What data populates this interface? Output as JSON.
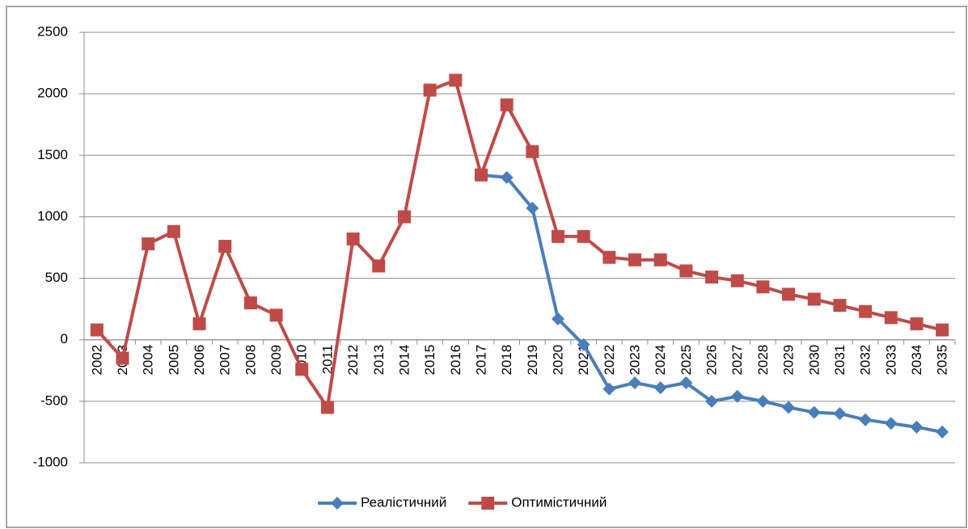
{
  "chart_data": {
    "type": "line",
    "categories": [
      "2002",
      "2003",
      "2004",
      "2005",
      "2006",
      "2007",
      "2008",
      "2009",
      "2010",
      "2011",
      "2012",
      "2013",
      "2014",
      "2015",
      "2016",
      "2017",
      "2018",
      "2019",
      "2020",
      "2021",
      "2022",
      "2023",
      "2024",
      "2025",
      "2026",
      "2027",
      "2028",
      "2029",
      "2030",
      "2031",
      "2032",
      "2033",
      "2034",
      "2035"
    ],
    "series": [
      {
        "name": "Реалістичний",
        "color": "#4a7ebb",
        "marker": "diamond",
        "values": [
          null,
          null,
          null,
          null,
          null,
          null,
          null,
          null,
          null,
          null,
          null,
          null,
          null,
          null,
          null,
          1340,
          1320,
          1070,
          170,
          -40,
          -400,
          -350,
          -390,
          -350,
          -500,
          -460,
          -500,
          -550,
          -590,
          -600,
          -650,
          -680,
          -710,
          -750
        ]
      },
      {
        "name": "Оптимістичний",
        "color": "#be4b48",
        "marker": "square",
        "values": [
          80,
          -150,
          780,
          880,
          130,
          760,
          300,
          200,
          -240,
          -550,
          820,
          600,
          1000,
          2030,
          2110,
          1340,
          1910,
          1530,
          840,
          840,
          670,
          650,
          650,
          560,
          510,
          480,
          430,
          370,
          330,
          280,
          230,
          180,
          130,
          80
        ]
      }
    ],
    "ylim": [
      -1000,
      2500
    ],
    "yticks": [
      -1000,
      -500,
      0,
      500,
      1000,
      1500,
      2000,
      2500
    ],
    "grid": true,
    "legend": "bottom"
  }
}
